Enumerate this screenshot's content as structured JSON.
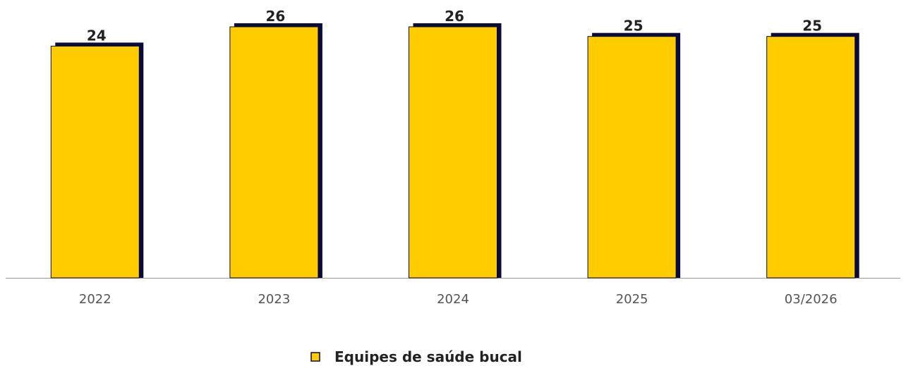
{
  "chart_data": {
    "type": "bar",
    "categories": [
      "2022",
      "2023",
      "2024",
      "2025",
      "03/2026"
    ],
    "series": [
      {
        "name": "Equipes de saúde bucal",
        "color": "#ffcc00",
        "values": [
          24,
          26,
          26,
          25,
          25
        ]
      }
    ],
    "ylim": [
      0,
      26
    ],
    "grid": false,
    "legend": "bottom"
  }
}
